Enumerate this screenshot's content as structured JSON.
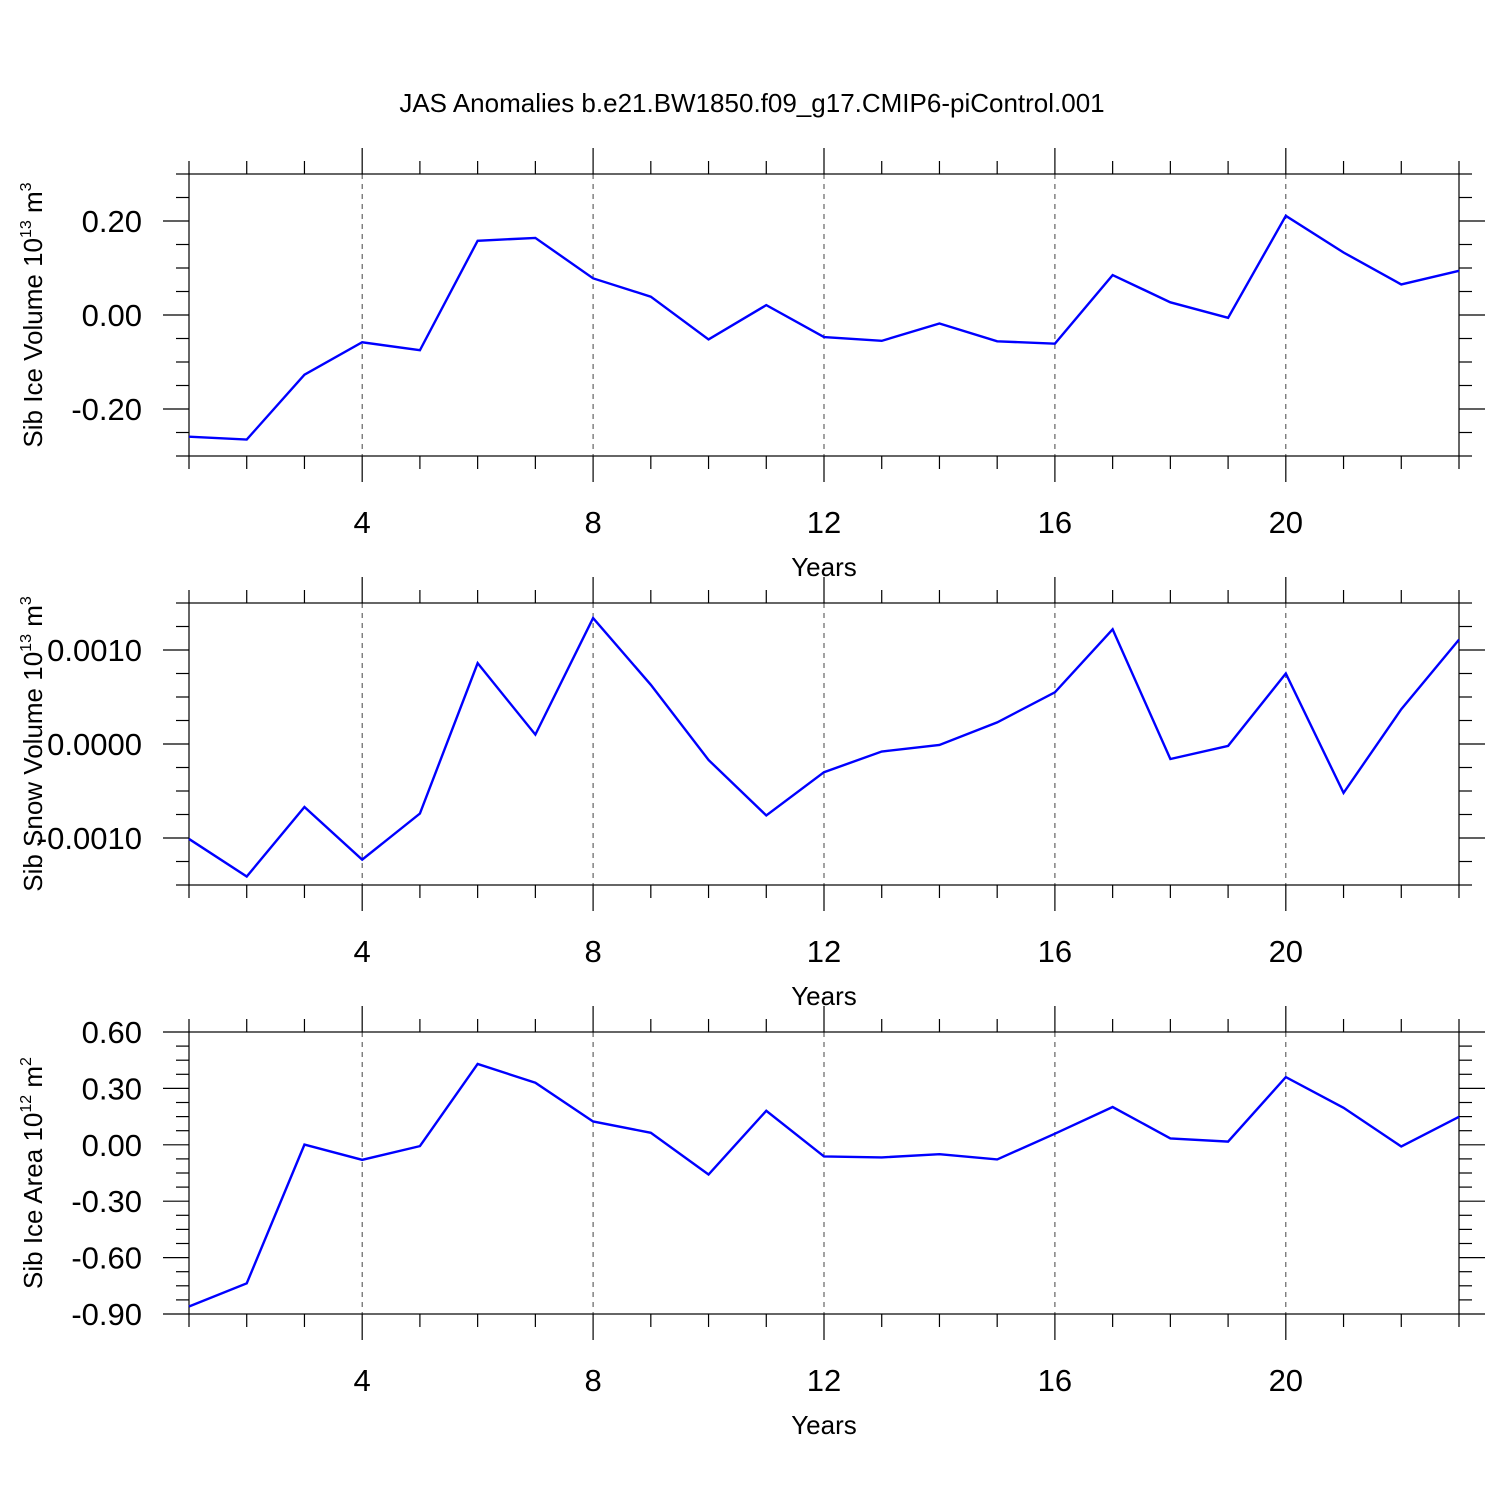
{
  "title": "JAS Anomalies b.e21.BW1850.f09_g17.CMIP6-piControl.001",
  "line_color": "#0000ff",
  "chart_data": [
    {
      "type": "line",
      "ylabel": {
        "prefix": "Sib Ice Volume 10",
        "exp": "13",
        "mid": " m",
        "unit_exp": "3"
      },
      "xlabel": "Years",
      "xlim": [
        1,
        23
      ],
      "ylim": [
        -0.3,
        0.3
      ],
      "xticks": [
        4,
        8,
        12,
        16,
        20
      ],
      "xtick_labels": [
        "4",
        "8",
        "12",
        "16",
        "20"
      ],
      "yticks": [
        -0.2,
        0.0,
        0.2
      ],
      "ytick_labels": [
        "-0.20",
        "0.00",
        "0.20"
      ],
      "yminor_step": 0.05,
      "x": [
        1,
        2,
        3,
        4,
        5,
        6,
        7,
        8,
        9,
        10,
        11,
        12,
        13,
        14,
        15,
        16,
        17,
        18,
        19,
        20,
        21,
        22,
        23
      ],
      "values": [
        -0.259,
        -0.265,
        -0.127,
        -0.058,
        -0.075,
        0.158,
        0.164,
        0.078,
        0.039,
        -0.052,
        0.021,
        -0.047,
        -0.055,
        -0.018,
        -0.056,
        -0.061,
        0.085,
        0.027,
        -0.006,
        0.211,
        0.133,
        0.065,
        0.094
      ]
    },
    {
      "type": "line",
      "ylabel": {
        "prefix": "Sib Snow Volume 10",
        "exp": "13",
        "mid": " m",
        "unit_exp": "3"
      },
      "xlabel": "Years",
      "xlim": [
        1,
        23
      ],
      "ylim": [
        -0.0015,
        0.0015
      ],
      "xticks": [
        4,
        8,
        12,
        16,
        20
      ],
      "xtick_labels": [
        "4",
        "8",
        "12",
        "16",
        "20"
      ],
      "yticks": [
        -0.001,
        0.0,
        0.001
      ],
      "ytick_labels": [
        "-0.0010",
        "0.0000",
        "0.0010"
      ],
      "yminor_step": 0.00025,
      "x": [
        1,
        2,
        3,
        4,
        5,
        6,
        7,
        8,
        9,
        10,
        11,
        12,
        13,
        14,
        15,
        16,
        17,
        18,
        19,
        20,
        21,
        22,
        23
      ],
      "values": [
        -0.00101,
        -0.00141,
        -0.00067,
        -0.00123,
        -0.00074,
        0.00086,
        0.0001,
        0.00134,
        0.00063,
        -0.00017,
        -0.00076,
        -0.0003,
        -8e-05,
        -1e-05,
        0.00023,
        0.00055,
        0.00122,
        -0.00016,
        -2e-05,
        0.00075,
        -0.00052,
        0.00037,
        0.00111
      ]
    },
    {
      "type": "line",
      "ylabel": {
        "prefix": "Sib Ice Area 10",
        "exp": "12",
        "mid": " m",
        "unit_exp": "2"
      },
      "xlabel": "Years",
      "xlim": [
        1,
        23
      ],
      "ylim": [
        -0.9,
        0.6
      ],
      "xticks": [
        4,
        8,
        12,
        16,
        20
      ],
      "xtick_labels": [
        "4",
        "8",
        "12",
        "16",
        "20"
      ],
      "yticks": [
        -0.9,
        -0.6,
        -0.3,
        0.0,
        0.3,
        0.6
      ],
      "ytick_labels": [
        "-0.90",
        "-0.60",
        "-0.30",
        "0.00",
        "0.30",
        "0.60"
      ],
      "yminor_step": 0.075,
      "x": [
        1,
        2,
        3,
        4,
        5,
        6,
        7,
        8,
        9,
        10,
        11,
        12,
        13,
        14,
        15,
        16,
        17,
        18,
        19,
        20,
        21,
        22,
        23
      ],
      "values": [
        -0.86,
        -0.737,
        0.001,
        -0.08,
        -0.007,
        0.43,
        0.33,
        0.124,
        0.064,
        -0.158,
        0.181,
        -0.062,
        -0.067,
        -0.05,
        -0.078,
        0.059,
        0.201,
        0.034,
        0.017,
        0.36,
        0.197,
        -0.009,
        0.149
      ]
    }
  ]
}
